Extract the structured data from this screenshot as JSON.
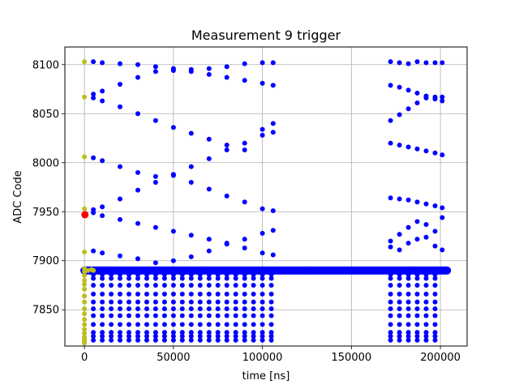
{
  "chart_data": {
    "type": "scatter",
    "title": "Measurement 9 trigger",
    "xlabel": "time [ns]",
    "ylabel": "ADC Code",
    "xlim": [
      -11000,
      215000
    ],
    "ylim": [
      7813,
      8118
    ],
    "xticks": [
      0,
      50000,
      100000,
      150000,
      200000
    ],
    "yticks": [
      7850,
      7900,
      7950,
      8000,
      8050,
      8100
    ],
    "grid": true,
    "colors": {
      "main": "#0000ff",
      "olive": "#bcbd22",
      "red": "#ff0000",
      "grid": "#b0b0b0"
    },
    "series": [
      {
        "role": "baseline",
        "color": "#0000ff",
        "marker_size": 5,
        "x_start": 0,
        "x_end": 204000,
        "x_step": 700,
        "y": 7890
      },
      {
        "role": "lower-stripes",
        "color": "#0000ff",
        "marker_size": 3,
        "rows": [
          7886,
          7882,
          7875,
          7866,
          7858,
          7851,
          7844,
          7835,
          7827,
          7823,
          7819
        ],
        "segments": [
          [
            5000,
            107000
          ],
          [
            172000,
            201000
          ]
        ],
        "x_step": 5000
      },
      {
        "role": "upper-traces",
        "color": "#0000ff",
        "marker_size": 3,
        "traces": [
          {
            "x": [
              5000,
              10000,
              20000,
              30000,
              40000,
              50000,
              60000,
              70000,
              80000,
              90000,
              100000,
              106000
            ],
            "y": [
              8103,
              8102,
              8101,
              8100,
              8098,
              8096,
              8095,
              8096,
              8098,
              8101,
              8102,
              8102
            ]
          },
          {
            "x": [
              5000,
              10000,
              20000,
              30000,
              40000,
              50000,
              60000,
              70000,
              80000,
              90000,
              100000,
              106000
            ],
            "y": [
              8070,
              8073,
              8080,
              8087,
              8093,
              8094,
              8093,
              8090,
              8087,
              8084,
              8081,
              8079
            ]
          },
          {
            "x": [
              5000,
              10000,
              20000,
              30000,
              40000,
              50000,
              60000,
              70000,
              80000,
              90000,
              100000,
              106000
            ],
            "y": [
              8066,
              8063,
              8057,
              8050,
              8043,
              8036,
              8030,
              8024,
              8018,
              8013,
              8034,
              8040
            ]
          },
          {
            "x": [
              5000,
              10000,
              20000,
              30000,
              40000,
              50000,
              60000,
              70000,
              80000,
              90000,
              100000,
              106000
            ],
            "y": [
              8005,
              8002,
              7996,
              7990,
              7986,
              7988,
              7996,
              8004,
              8013,
              8020,
              8028,
              8031
            ]
          },
          {
            "x": [
              5000,
              10000,
              20000,
              30000,
              40000,
              50000,
              60000,
              70000,
              80000,
              90000,
              100000,
              106000
            ],
            "y": [
              7952,
              7955,
              7963,
              7972,
              7980,
              7987,
              7980,
              7973,
              7966,
              7960,
              7953,
              7951
            ]
          },
          {
            "x": [
              5000,
              10000,
              20000,
              30000,
              40000,
              50000,
              60000,
              70000,
              80000,
              90000,
              100000,
              106000
            ],
            "y": [
              7949,
              7946,
              7942,
              7938,
              7934,
              7930,
              7926,
              7922,
              7918,
              7913,
              7908,
              7906
            ]
          },
          {
            "x": [
              5000,
              10000,
              20000,
              30000,
              40000,
              50000,
              60000,
              70000,
              80000,
              90000,
              100000,
              106000
            ],
            "y": [
              7910,
              7908,
              7905,
              7902,
              7898,
              7900,
              7904,
              7910,
              7917,
              7922,
              7928,
              7931
            ]
          },
          {
            "x": [
              172000,
              177000,
              182000,
              187000,
              192000,
              197000,
              201000
            ],
            "y": [
              8103,
              8102,
              8101,
              8103,
              8102,
              8102,
              8102
            ]
          },
          {
            "x": [
              172000,
              177000,
              182000,
              187000,
              192000,
              197000,
              201000
            ],
            "y": [
              8079,
              8077,
              8074,
              8071,
              8068,
              8065,
              8067
            ]
          },
          {
            "x": [
              172000,
              177000,
              182000,
              187000,
              192000,
              197000,
              201000
            ],
            "y": [
              8043,
              8049,
              8055,
              8061,
              8066,
              8067,
              8063
            ]
          },
          {
            "x": [
              172000,
              177000,
              182000,
              187000,
              192000,
              197000,
              201000
            ],
            "y": [
              8020,
              8018,
              8016,
              8014,
              8012,
              8010,
              8008
            ]
          },
          {
            "x": [
              172000,
              177000,
              182000,
              187000,
              192000,
              197000,
              201000
            ],
            "y": [
              7964,
              7963,
              7962,
              7960,
              7958,
              7956,
              7954
            ]
          },
          {
            "x": [
              172000,
              177000,
              182000,
              187000,
              192000,
              197000,
              201000
            ],
            "y": [
              7920,
              7927,
              7934,
              7940,
              7937,
              7930,
              7944
            ]
          },
          {
            "x": [
              172000,
              177000,
              182000,
              187000,
              192000,
              197000,
              201000
            ],
            "y": [
              7914,
              7911,
              7918,
              7922,
              7924,
              7915,
              7911
            ]
          }
        ]
      },
      {
        "role": "initial-samples",
        "color": "#bcbd22",
        "marker_size": 3,
        "x": [
          0,
          0,
          0,
          0,
          0,
          0,
          0,
          0,
          0,
          0,
          0,
          0,
          0,
          0,
          0,
          0,
          0,
          0,
          0,
          0,
          0,
          0,
          0,
          0,
          2000,
          4000,
          5000
        ],
        "y": [
          8103,
          8067,
          8006,
          7953,
          7909,
          7892,
          7889,
          7885,
          7880,
          7876,
          7871,
          7864,
          7858,
          7851,
          7846,
          7840,
          7835,
          7830,
          7826,
          7822,
          7820,
          7818,
          7817,
          7816,
          7890,
          7891,
          7890
        ]
      },
      {
        "role": "trigger-point",
        "color": "#ff0000",
        "marker_size": 4.5,
        "x": [
          300
        ],
        "y": [
          7947
        ]
      }
    ]
  }
}
